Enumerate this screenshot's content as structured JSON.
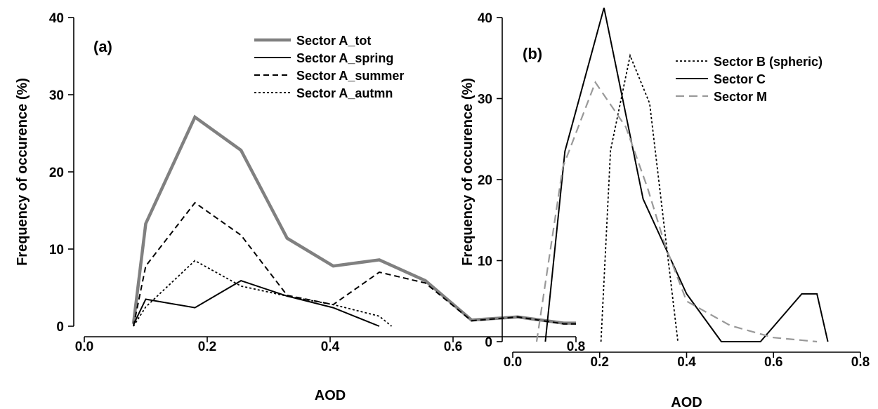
{
  "chart_data": [
    {
      "type": "line",
      "panel_label": "(a)",
      "xlabel": "AOD",
      "ylabel": "Frequency of occurence (%)",
      "xlim": [
        0.0,
        0.8
      ],
      "ylim": [
        0,
        40
      ],
      "x_ticks": [
        "0.0",
        "0.2",
        "0.4",
        "0.6",
        "0.8"
      ],
      "y_ticks": [
        "0",
        "10",
        "20",
        "30",
        "40"
      ],
      "grid": false,
      "legend_position": "top-right",
      "series": [
        {
          "name": "Sector A_tot",
          "color": "#808080",
          "style": "solid-thick",
          "x": [
            0.08,
            0.1,
            0.18,
            0.255,
            0.33,
            0.405,
            0.48,
            0.555,
            0.63,
            0.705,
            0.78,
            0.8
          ],
          "y": [
            0.3,
            13.3,
            27.1,
            22.8,
            11.4,
            7.8,
            8.6,
            5.9,
            0.8,
            1.2,
            0.4,
            0.4
          ]
        },
        {
          "name": "Sector A_spring",
          "color": "#000000",
          "style": "solid",
          "x": [
            0.08,
            0.1,
            0.18,
            0.255,
            0.33,
            0.405,
            0.48
          ],
          "y": [
            0.2,
            3.5,
            2.4,
            5.9,
            3.9,
            2.4,
            0.0
          ]
        },
        {
          "name": "Sector A_summer",
          "color": "#000000",
          "style": "dashed",
          "x": [
            0.08,
            0.1,
            0.18,
            0.255,
            0.33,
            0.405,
            0.48,
            0.555,
            0.63,
            0.705,
            0.78,
            0.8
          ],
          "y": [
            0.0,
            7.8,
            16.0,
            11.8,
            4.0,
            2.8,
            7.0,
            5.6,
            0.7,
            1.2,
            0.3,
            0.3
          ]
        },
        {
          "name": "Sector A_autmn",
          "color": "#000000",
          "style": "dotted",
          "x": [
            0.08,
            0.1,
            0.18,
            0.255,
            0.33,
            0.405,
            0.48,
            0.5
          ],
          "y": [
            0.0,
            2.5,
            8.5,
            5.2,
            3.9,
            2.8,
            1.3,
            0.0
          ]
        }
      ]
    },
    {
      "type": "line",
      "panel_label": "(b)",
      "xlabel": "AOD",
      "ylabel": "Frequency of occurence (%)",
      "xlim": [
        0.0,
        0.8
      ],
      "ylim": [
        0,
        40
      ],
      "x_ticks": [
        "0.0",
        "0.2",
        "0.4",
        "0.6",
        "0.8"
      ],
      "y_ticks": [
        "0",
        "10",
        "20",
        "30",
        "40"
      ],
      "grid": false,
      "legend_position": "top-right",
      "series": [
        {
          "name": "Sector B (spheric)",
          "color": "#000000",
          "style": "dotted",
          "x": [
            0.203,
            0.225,
            0.27,
            0.315,
            0.38
          ],
          "y": [
            0.0,
            23.6,
            35.3,
            29.4,
            0.0
          ]
        },
        {
          "name": "Sector C",
          "color": "#000000",
          "style": "solid",
          "x": [
            0.075,
            0.12,
            0.21,
            0.3,
            0.4,
            0.48,
            0.57,
            0.665,
            0.7,
            0.725
          ],
          "y": [
            0.0,
            23.5,
            41.2,
            17.6,
            5.9,
            0.0,
            0.0,
            5.9,
            5.9,
            0.0
          ]
        },
        {
          "name": "Sector M",
          "color": "#999999",
          "style": "long-dashed",
          "x": [
            0.055,
            0.08,
            0.115,
            0.19,
            0.26,
            0.31,
            0.35,
            0.4,
            0.5,
            0.6,
            0.7
          ],
          "y": [
            0.0,
            9.0,
            21.5,
            32.0,
            26.5,
            19.0,
            12.0,
            5.0,
            2.0,
            0.5,
            0.0
          ]
        }
      ]
    }
  ]
}
